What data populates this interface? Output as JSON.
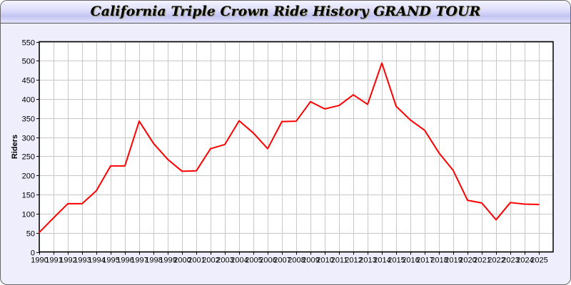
{
  "chart_data": {
    "type": "line",
    "title": "California Triple Crown Ride History GRAND TOUR",
    "xlabel": "",
    "ylabel": "Riders",
    "ylim": [
      0,
      550
    ],
    "yticks": [
      0,
      50,
      100,
      150,
      200,
      250,
      300,
      350,
      400,
      450,
      500,
      550
    ],
    "grid": true,
    "x": [
      1990,
      1991,
      1992,
      1993,
      1994,
      1995,
      1996,
      1997,
      1998,
      1999,
      2000,
      2001,
      2002,
      2003,
      2004,
      2005,
      2006,
      2007,
      2008,
      2009,
      2010,
      2011,
      2012,
      2013,
      2014,
      2015,
      2016,
      2017,
      2018,
      2019,
      2020,
      2021,
      2022,
      2023,
      2024,
      2025
    ],
    "series": [
      {
        "color": "#ff0000",
        "values": [
          51,
          89,
          126,
          126,
          160,
          225,
          225,
          342,
          284,
          242,
          211,
          212,
          270,
          281,
          343,
          311,
          270,
          341,
          342,
          393,
          374,
          383,
          411,
          386,
          494,
          381,
          345,
          318,
          259,
          213,
          135,
          128,
          84,
          129,
          125,
          124
        ]
      }
    ]
  }
}
